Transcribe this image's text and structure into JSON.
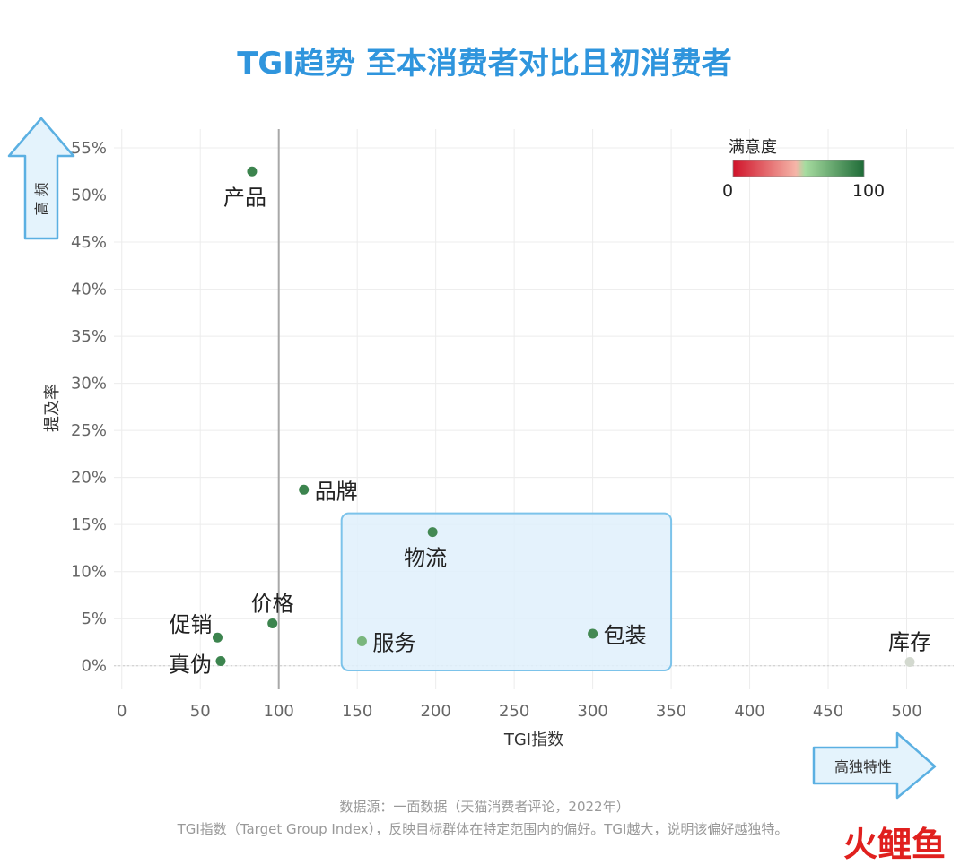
{
  "chart_data": {
    "type": "scatter",
    "title": "TGI趋势 至本消费者对比且初消费者",
    "xlabel": "TGI指数",
    "ylabel": "提及率",
    "xlim": [
      -5,
      530
    ],
    "ylim": [
      -2.5,
      57
    ],
    "x_ticks": [
      "0",
      "50",
      "100",
      "150",
      "200",
      "250",
      "300",
      "350",
      "400",
      "450",
      "500"
    ],
    "x_tick_values": [
      0,
      50,
      100,
      150,
      200,
      250,
      300,
      350,
      400,
      450,
      500
    ],
    "y_ticks": [
      "0%",
      "5%",
      "10%",
      "15%",
      "20%",
      "25%",
      "30%",
      "35%",
      "40%",
      "45%",
      "50%",
      "55%"
    ],
    "y_tick_values": [
      0,
      5,
      10,
      15,
      20,
      25,
      30,
      35,
      40,
      45,
      50,
      55
    ],
    "reference_line_x": 100,
    "grid": true,
    "points": [
      {
        "label": "产品",
        "x": 83,
        "y": 52.5,
        "satisfaction": 90,
        "label_pos": "below"
      },
      {
        "label": "品牌",
        "x": 116,
        "y": 18.7,
        "satisfaction": 90,
        "label_pos": "right"
      },
      {
        "label": "物流",
        "x": 198,
        "y": 14.2,
        "satisfaction": 88,
        "label_pos": "below"
      },
      {
        "label": "价格",
        "x": 96,
        "y": 4.5,
        "satisfaction": 90,
        "label_pos": "above"
      },
      {
        "label": "促销",
        "x": 61,
        "y": 3.0,
        "satisfaction": 90,
        "label_pos": "upper-left"
      },
      {
        "label": "真伪",
        "x": 63,
        "y": 0.5,
        "satisfaction": 90,
        "label_pos": "left"
      },
      {
        "label": "服务",
        "x": 153,
        "y": 2.6,
        "satisfaction": 70,
        "label_pos": "right"
      },
      {
        "label": "包装",
        "x": 300,
        "y": 3.4,
        "satisfaction": 88,
        "label_pos": "right"
      },
      {
        "label": "库存",
        "x": 502,
        "y": 0.4,
        "satisfaction": 50,
        "label_pos": "above"
      }
    ],
    "highlight_box": {
      "x0": 140,
      "x1": 350,
      "y0": -0.5,
      "y1": 16.2
    },
    "legend": {
      "title": "满意度",
      "min_label": "0",
      "max_label": "100",
      "placement": "top-right",
      "colors": [
        "#d0132a",
        "#f5b5a8",
        "#a7dca0",
        "#1e6b37"
      ]
    },
    "colors": {
      "box_fill": "#dff0fc",
      "box_stroke": "#7cc3ea",
      "ref_line": "#a8a8a8",
      "arrow_fill": "#e4f3fc",
      "arrow_stroke": "#5bb0e2"
    }
  },
  "arrows": {
    "up_text": "高 频",
    "right_text": "高独特性"
  },
  "footer": {
    "line1": "数据源：一面数据（天猫消费者评论，2022年）",
    "line2": "TGI指数（Target Group Index），反映目标群体在特定范围内的偏好。TGI越大，说明该偏好越独特。"
  },
  "watermark": {
    "brand": "火鲤鱼"
  }
}
